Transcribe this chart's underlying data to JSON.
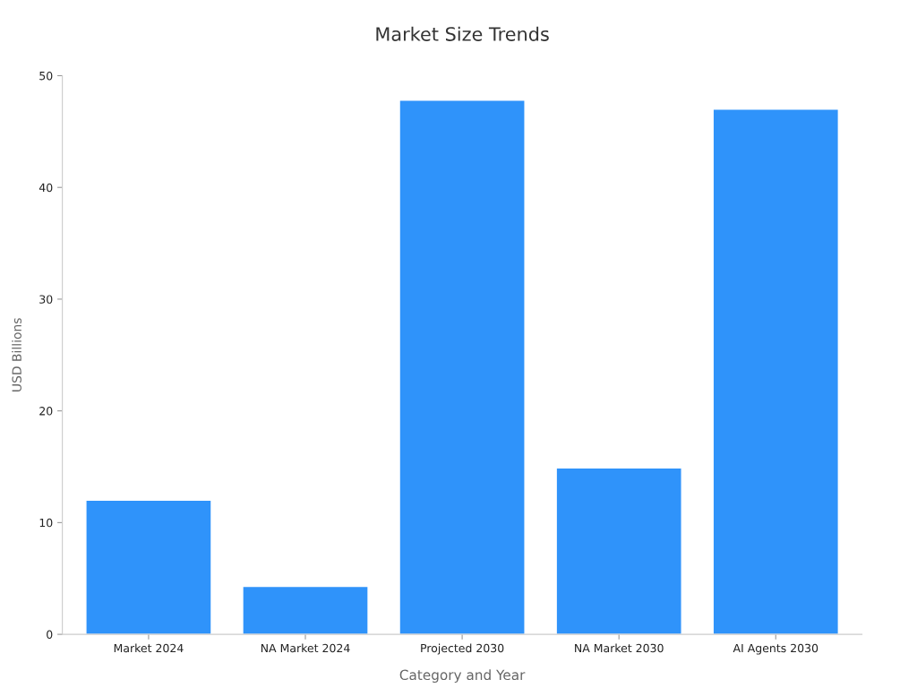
{
  "chart_data": {
    "type": "bar",
    "title": "Market Size Trends",
    "xlabel": "Category and Year",
    "ylabel": "USD Billions",
    "categories": [
      "Market 2024",
      "NA Market 2024",
      "Projected 2030",
      "NA Market 2030",
      "AI Agents 2030"
    ],
    "values": [
      12,
      4.3,
      47.8,
      14.9,
      47
    ],
    "color": "#2f93fa",
    "ylim": [
      0,
      50
    ],
    "yticks": [
      0,
      10,
      20,
      30,
      40,
      50
    ],
    "grid": false,
    "legend": false
  }
}
